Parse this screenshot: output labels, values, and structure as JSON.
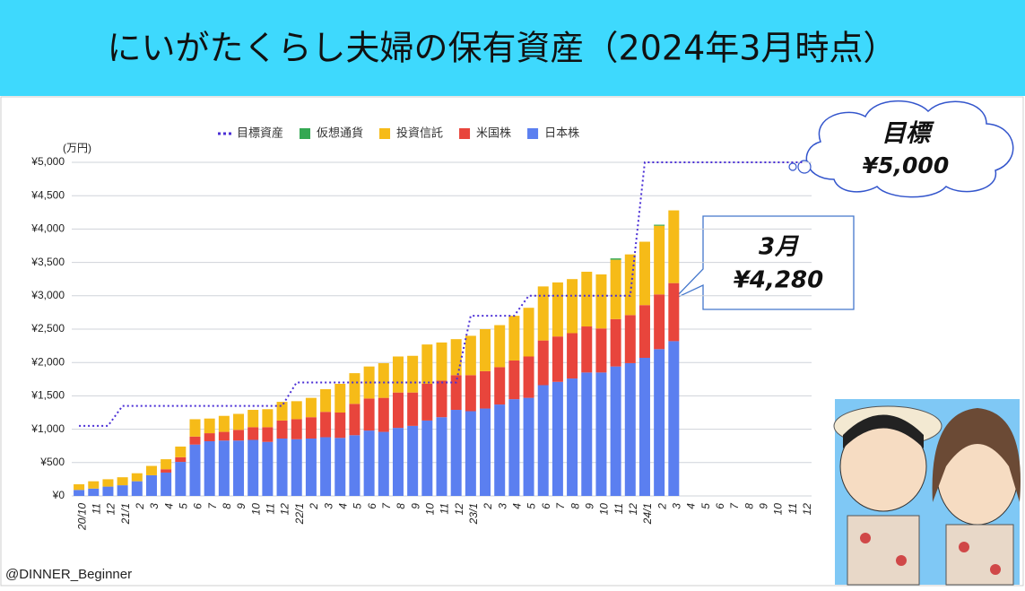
{
  "header": {
    "title": "にいがたくらし夫婦の保有資産（2024年3月時点）"
  },
  "chart_data": {
    "type": "bar",
    "stacked": true,
    "y_unit": "(万円)",
    "categories": [
      "20/10",
      "11",
      "12",
      "21/1",
      "2",
      "3",
      "4",
      "5",
      "6",
      "7",
      "8",
      "9",
      "10",
      "11",
      "12",
      "22/1",
      "2",
      "3",
      "4",
      "5",
      "6",
      "7",
      "8",
      "9",
      "10",
      "11",
      "12",
      "23/1",
      "2",
      "3",
      "4",
      "5",
      "6",
      "7",
      "8",
      "9",
      "10",
      "11",
      "12",
      "24/1",
      "2",
      "3",
      "4",
      "5",
      "6",
      "7",
      "8",
      "9",
      "10",
      "11",
      "12"
    ],
    "series": [
      {
        "name": "目標資産",
        "type": "line",
        "color": "#4b2fd6",
        "values": [
          1050,
          1050,
          1050,
          1350,
          1350,
          1350,
          1350,
          1350,
          1350,
          1350,
          1350,
          1350,
          1350,
          1350,
          1350,
          1700,
          1700,
          1700,
          1700,
          1700,
          1700,
          1700,
          1700,
          1700,
          1700,
          1700,
          1700,
          2700,
          2700,
          2700,
          2700,
          3000,
          3000,
          3000,
          3000,
          3000,
          3000,
          3000,
          3000,
          5000,
          5000,
          5000,
          5000,
          5000,
          5000,
          5000,
          5000,
          5000,
          5000,
          5000,
          5000
        ]
      },
      {
        "name": "仮想通貨",
        "color": "#34a853",
        "values": [
          0,
          0,
          0,
          0,
          0,
          0,
          0,
          0,
          0,
          0,
          0,
          0,
          0,
          0,
          0,
          0,
          0,
          0,
          0,
          0,
          0,
          0,
          0,
          0,
          0,
          0,
          0,
          0,
          0,
          0,
          0,
          0,
          0,
          0,
          0,
          0,
          0,
          20,
          0,
          0,
          15,
          0,
          null,
          null,
          null,
          null,
          null,
          null,
          null,
          null,
          null
        ]
      },
      {
        "name": "投資信託",
        "color": "#f6bb18",
        "values": [
          85,
          110,
          110,
          120,
          120,
          140,
          150,
          160,
          260,
          220,
          240,
          240,
          260,
          270,
          280,
          270,
          290,
          340,
          430,
          460,
          480,
          520,
          540,
          550,
          590,
          570,
          540,
          590,
          630,
          630,
          670,
          730,
          810,
          810,
          810,
          820,
          810,
          890,
          910,
          950,
          1030,
          1090,
          null,
          null,
          null,
          null,
          null,
          null,
          null,
          null,
          null
        ]
      },
      {
        "name": "米国株",
        "color": "#e8453c",
        "values": [
          0,
          0,
          0,
          0,
          0,
          0,
          50,
          70,
          120,
          120,
          130,
          160,
          190,
          220,
          270,
          300,
          320,
          380,
          380,
          470,
          480,
          510,
          530,
          500,
          550,
          550,
          520,
          540,
          560,
          560,
          580,
          620,
          670,
          680,
          680,
          690,
          660,
          710,
          720,
          790,
          820,
          870,
          null,
          null,
          null,
          null,
          null,
          null,
          null,
          null,
          null
        ]
      },
      {
        "name": "日本株",
        "color": "#5b7ff0",
        "values": [
          90,
          110,
          140,
          160,
          220,
          310,
          350,
          510,
          770,
          820,
          830,
          830,
          840,
          810,
          860,
          850,
          860,
          880,
          870,
          910,
          980,
          960,
          1020,
          1050,
          1130,
          1180,
          1290,
          1270,
          1310,
          1370,
          1450,
          1470,
          1660,
          1710,
          1760,
          1850,
          1850,
          1940,
          1990,
          2070,
          2200,
          2320,
          null,
          null,
          null,
          null,
          null,
          null,
          null,
          null,
          null
        ]
      }
    ],
    "ylim": [
      0,
      5000
    ],
    "yticks": [
      {
        "value": 0,
        "label": "¥0"
      },
      {
        "value": 500,
        "label": "¥500"
      },
      {
        "value": 1000,
        "label": "¥1,000"
      },
      {
        "value": 1500,
        "label": "¥1,500"
      },
      {
        "value": 2000,
        "label": "¥2,000"
      },
      {
        "value": 2500,
        "label": "¥2,500"
      },
      {
        "value": 3000,
        "label": "¥3,000"
      },
      {
        "value": 3500,
        "label": "¥3,500"
      },
      {
        "value": 4000,
        "label": "¥4,000"
      },
      {
        "value": 4500,
        "label": "¥4,500"
      },
      {
        "value": 5000,
        "label": "¥5,000"
      }
    ],
    "grid": true,
    "legend": "top",
    "annotations": [
      {
        "title": "目標",
        "text": "¥5,000"
      },
      {
        "title": "3月",
        "text": "¥4,280"
      }
    ]
  },
  "footer": {
    "credit": "@DINNER_Beginner"
  }
}
